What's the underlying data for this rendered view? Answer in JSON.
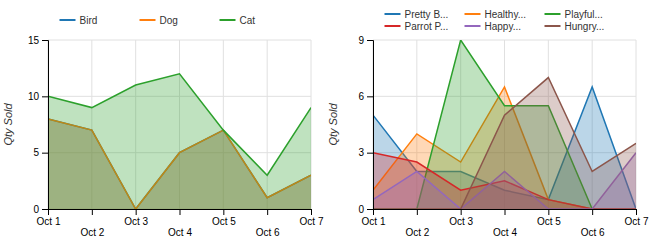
{
  "chart_data": [
    {
      "type": "area",
      "ylabel": "Qty Sold",
      "categories": [
        "Oct 1",
        "Oct 2",
        "Oct 3",
        "Oct 4",
        "Oct 5",
        "Oct 6",
        "Oct 7"
      ],
      "series": [
        {
          "name": "Bird",
          "values": [
            8,
            7,
            0,
            5,
            7,
            1,
            3
          ]
        },
        {
          "name": "Dog",
          "values": [
            8,
            7,
            0,
            5,
            7,
            1,
            3
          ]
        },
        {
          "name": "Cat",
          "values": [
            10,
            9,
            11,
            12,
            7,
            3,
            9
          ]
        }
      ],
      "ylim": [
        0,
        15
      ],
      "yticks": [
        0,
        5,
        10,
        15
      ],
      "grid": true,
      "legend": "top"
    },
    {
      "type": "area",
      "ylabel": "Qty Sold",
      "categories": [
        "Oct 1",
        "Oct 2",
        "Oct 3",
        "Oct 4",
        "Oct 5",
        "Oct 6",
        "Oct 7"
      ],
      "series": [
        {
          "name": "Pretty B...",
          "values": [
            5,
            2,
            2,
            1,
            0.5,
            6.5,
            0
          ]
        },
        {
          "name": "Healthy...",
          "values": [
            1,
            4,
            2.5,
            6.5,
            0.5,
            0,
            0
          ]
        },
        {
          "name": "Playful...",
          "values": [
            0,
            0,
            9,
            5.5,
            5.5,
            0,
            0
          ]
        },
        {
          "name": "Parrot P...",
          "values": [
            3,
            2.5,
            1,
            1.5,
            0.5,
            0,
            0
          ]
        },
        {
          "name": "Happy...",
          "values": [
            0.5,
            2,
            0,
            2,
            0,
            0,
            3
          ]
        },
        {
          "name": "Hungry...",
          "values": [
            0,
            0,
            0,
            5,
            7,
            2,
            3.5
          ]
        }
      ],
      "ylim": [
        0,
        9
      ],
      "yticks": [
        0,
        3,
        6,
        9
      ],
      "grid": true,
      "legend": "top"
    }
  ]
}
